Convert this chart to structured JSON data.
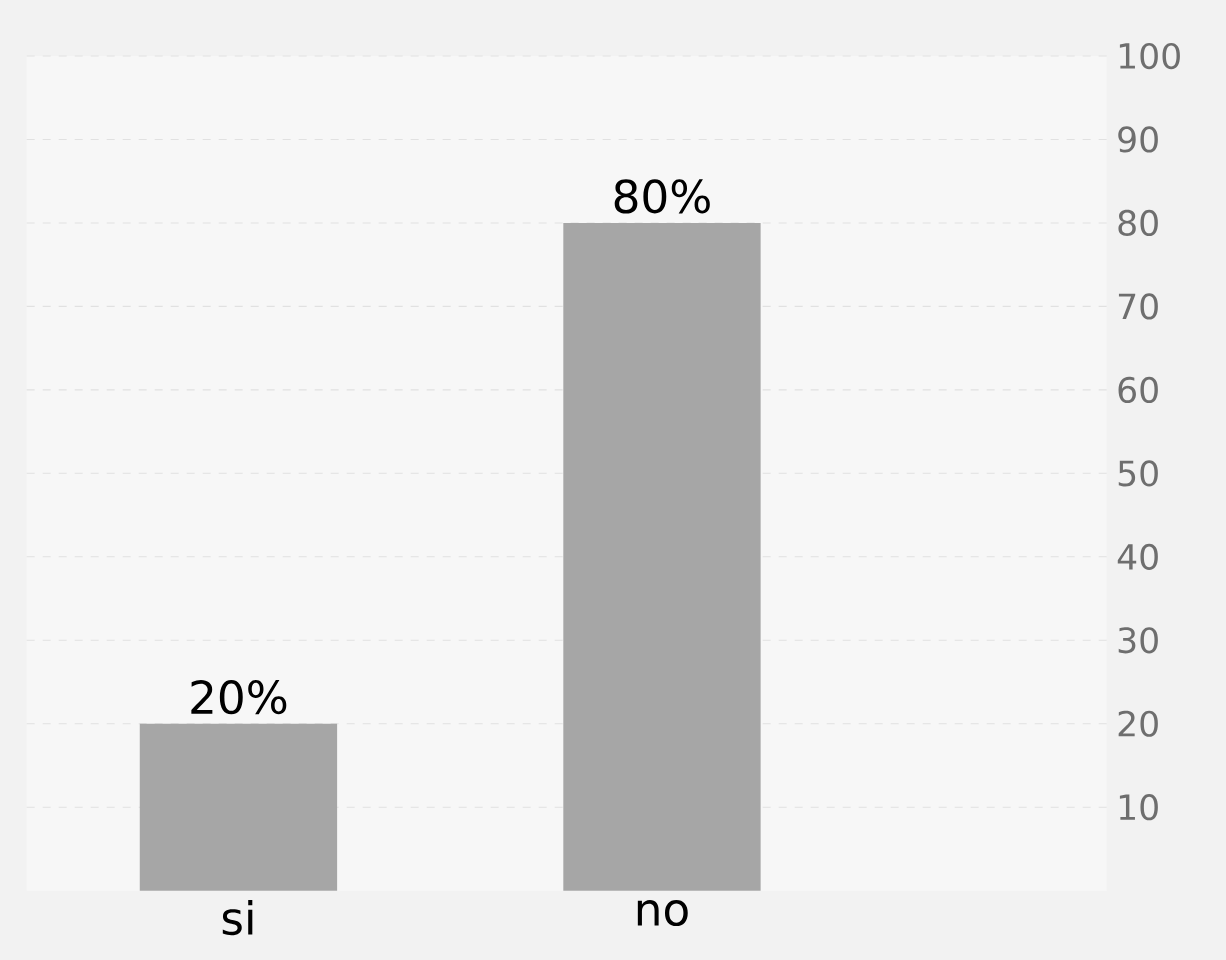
{
  "chart_data": {
    "type": "bar",
    "categories": [
      "si",
      "no"
    ],
    "values": [
      20,
      80
    ],
    "value_labels": [
      "20%",
      "80%"
    ],
    "color": "#a6a6a6",
    "ylim": [
      0,
      100
    ],
    "yticks": [
      10,
      20,
      30,
      40,
      50,
      60,
      70,
      80,
      90,
      100
    ],
    "grid": "y"
  }
}
